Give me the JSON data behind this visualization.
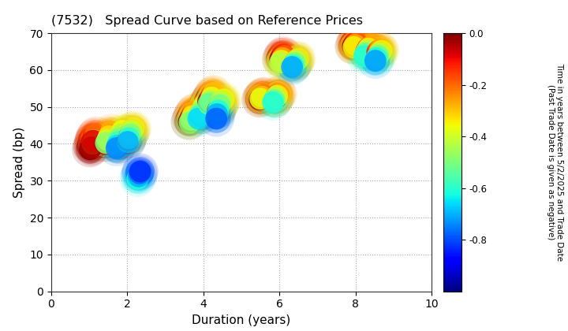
{
  "title": "(7532)   Spread Curve based on Reference Prices",
  "xlabel": "Duration (years)",
  "ylabel": "Spread (bp)",
  "xlim": [
    0,
    10
  ],
  "ylim": [
    0,
    70
  ],
  "xticks": [
    0,
    2,
    4,
    6,
    8,
    10
  ],
  "yticks": [
    0,
    10,
    20,
    30,
    40,
    50,
    60,
    70
  ],
  "colorbar_label": "Time in years between 5/2/2025 and Trade Date\n(Past Trade Date is given as negative)",
  "cbar_vmin": -1.0,
  "cbar_vmax": 0.0,
  "cbar_ticks": [
    0.0,
    -0.2,
    -0.4,
    -0.6,
    -0.8
  ],
  "clusters": [
    {
      "points": [
        [
          1.02,
          38.5,
          -0.01
        ],
        [
          1.05,
          39.5,
          -0.03
        ],
        [
          1.08,
          40.5,
          -0.06
        ],
        [
          1.11,
          41.5,
          -0.1
        ],
        [
          1.14,
          42.0,
          -0.15
        ],
        [
          1.17,
          42.5,
          -0.2
        ],
        [
          1.13,
          41.0,
          -0.26
        ],
        [
          1.09,
          40.0,
          -0.3
        ],
        [
          1.06,
          39.0,
          -0.04
        ],
        [
          1.1,
          40.8,
          -0.08
        ]
      ]
    },
    {
      "points": [
        [
          1.42,
          40.0,
          -0.03
        ],
        [
          1.46,
          41.0,
          -0.08
        ],
        [
          1.5,
          41.8,
          -0.14
        ],
        [
          1.54,
          42.5,
          -0.2
        ],
        [
          1.57,
          43.2,
          -0.27
        ],
        [
          1.52,
          42.0,
          -0.33
        ],
        [
          1.48,
          41.0,
          -0.4
        ],
        [
          1.44,
          40.2,
          -0.48
        ]
      ]
    },
    {
      "points": [
        [
          1.77,
          39.5,
          -0.02
        ],
        [
          1.8,
          40.5,
          -0.07
        ],
        [
          1.84,
          41.5,
          -0.13
        ],
        [
          1.88,
          42.2,
          -0.2
        ],
        [
          1.91,
          43.0,
          -0.28
        ],
        [
          1.87,
          43.5,
          -0.36
        ],
        [
          1.83,
          42.5,
          -0.43
        ],
        [
          1.8,
          41.5,
          -0.5
        ],
        [
          1.77,
          40.5,
          -0.58
        ],
        [
          1.74,
          39.5,
          -0.66
        ],
        [
          1.72,
          38.8,
          -0.74
        ]
      ]
    },
    {
      "points": [
        [
          2.02,
          41.0,
          -0.04
        ],
        [
          2.06,
          42.0,
          -0.1
        ],
        [
          2.1,
          43.0,
          -0.18
        ],
        [
          2.14,
          43.8,
          -0.26
        ],
        [
          2.17,
          44.2,
          -0.34
        ],
        [
          2.12,
          43.5,
          -0.42
        ],
        [
          2.08,
          42.5,
          -0.51
        ],
        [
          2.04,
          41.5,
          -0.6
        ],
        [
          2.01,
          40.5,
          -0.7
        ]
      ]
    },
    {
      "points": [
        [
          2.27,
          30.5,
          -0.62
        ],
        [
          2.3,
          31.2,
          -0.7
        ],
        [
          2.32,
          32.0,
          -0.77
        ],
        [
          2.34,
          32.5,
          -0.83
        ]
      ]
    },
    {
      "points": [
        [
          3.62,
          46.0,
          -0.02
        ],
        [
          3.66,
          47.0,
          -0.07
        ],
        [
          3.7,
          47.8,
          -0.13
        ],
        [
          3.74,
          48.5,
          -0.2
        ],
        [
          3.77,
          48.8,
          -0.27
        ],
        [
          3.72,
          47.5,
          -0.34
        ],
        [
          3.68,
          46.5,
          -0.41
        ],
        [
          3.64,
          45.8,
          -0.49
        ]
      ]
    },
    {
      "points": [
        [
          3.93,
          47.5,
          -0.02
        ],
        [
          3.97,
          48.5,
          -0.07
        ],
        [
          4.01,
          49.5,
          -0.13
        ],
        [
          4.05,
          50.2,
          -0.2
        ],
        [
          4.08,
          50.8,
          -0.27
        ],
        [
          4.02,
          50.5,
          -0.34
        ],
        [
          3.98,
          49.5,
          -0.42
        ],
        [
          3.94,
          48.5,
          -0.5
        ],
        [
          3.9,
          47.5,
          -0.58
        ],
        [
          3.87,
          46.8,
          -0.66
        ]
      ]
    },
    {
      "points": [
        [
          4.13,
          51.5,
          -0.02
        ],
        [
          4.17,
          52.2,
          -0.08
        ],
        [
          4.21,
          53.0,
          -0.15
        ],
        [
          4.25,
          53.5,
          -0.22
        ],
        [
          4.28,
          53.8,
          -0.3
        ],
        [
          4.22,
          52.5,
          -0.37
        ],
        [
          4.18,
          51.5,
          -0.45
        ],
        [
          4.14,
          50.8,
          -0.53
        ]
      ]
    },
    {
      "points": [
        [
          4.38,
          49.0,
          -0.04
        ],
        [
          4.42,
          50.0,
          -0.11
        ],
        [
          4.46,
          51.0,
          -0.19
        ],
        [
          4.5,
          51.5,
          -0.27
        ],
        [
          4.53,
          52.0,
          -0.35
        ],
        [
          4.47,
          51.5,
          -0.43
        ],
        [
          4.43,
          50.5,
          -0.51
        ],
        [
          4.39,
          49.0,
          -0.61
        ],
        [
          4.36,
          48.0,
          -0.7
        ],
        [
          4.34,
          46.8,
          -0.78
        ]
      ]
    },
    {
      "points": [
        [
          5.48,
          52.0,
          -0.02
        ],
        [
          5.52,
          52.5,
          -0.08
        ],
        [
          5.56,
          53.0,
          -0.15
        ],
        [
          5.59,
          53.2,
          -0.22
        ],
        [
          5.54,
          52.8,
          -0.29
        ],
        [
          5.5,
          52.2,
          -0.37
        ]
      ]
    },
    {
      "points": [
        [
          5.88,
          52.0,
          -0.04
        ],
        [
          5.92,
          52.8,
          -0.11
        ],
        [
          5.96,
          53.5,
          -0.19
        ],
        [
          5.99,
          53.5,
          -0.27
        ],
        [
          5.94,
          53.0,
          -0.35
        ],
        [
          5.9,
          52.5,
          -0.43
        ],
        [
          5.86,
          51.8,
          -0.52
        ],
        [
          5.83,
          51.2,
          -0.61
        ]
      ]
    },
    {
      "points": [
        [
          6.02,
          63.0,
          -0.02
        ],
        [
          6.06,
          63.8,
          -0.07
        ],
        [
          6.1,
          64.2,
          -0.13
        ],
        [
          6.13,
          63.8,
          -0.19
        ],
        [
          6.08,
          63.2,
          -0.27
        ],
        [
          6.05,
          62.5,
          -0.35
        ],
        [
          6.02,
          62.0,
          -0.43
        ]
      ]
    },
    {
      "points": [
        [
          6.38,
          61.5,
          -0.09
        ],
        [
          6.42,
          62.2,
          -0.17
        ],
        [
          6.46,
          62.8,
          -0.25
        ],
        [
          6.49,
          63.0,
          -0.34
        ],
        [
          6.44,
          62.5,
          -0.43
        ],
        [
          6.4,
          61.8,
          -0.51
        ],
        [
          6.36,
          61.2,
          -0.61
        ],
        [
          6.33,
          60.8,
          -0.71
        ]
      ]
    },
    {
      "points": [
        [
          7.93,
          66.5,
          -0.02
        ],
        [
          7.97,
          67.2,
          -0.07
        ],
        [
          8.01,
          67.5,
          -0.13
        ],
        [
          8.04,
          67.3,
          -0.19
        ],
        [
          7.99,
          66.8,
          -0.27
        ],
        [
          7.95,
          66.2,
          -0.35
        ]
      ]
    },
    {
      "points": [
        [
          8.28,
          65.0,
          -0.04
        ],
        [
          8.32,
          65.8,
          -0.11
        ],
        [
          8.36,
          66.2,
          -0.19
        ],
        [
          8.39,
          66.3,
          -0.27
        ],
        [
          8.34,
          65.8,
          -0.35
        ],
        [
          8.3,
          65.2,
          -0.43
        ],
        [
          8.26,
          64.5,
          -0.52
        ],
        [
          8.23,
          63.8,
          -0.61
        ]
      ]
    },
    {
      "points": [
        [
          8.57,
          64.8,
          -0.11
        ],
        [
          8.61,
          65.3,
          -0.19
        ],
        [
          8.65,
          65.5,
          -0.27
        ],
        [
          8.68,
          65.2,
          -0.35
        ],
        [
          8.63,
          64.5,
          -0.43
        ],
        [
          8.59,
          63.8,
          -0.52
        ],
        [
          8.55,
          63.2,
          -0.62
        ],
        [
          8.52,
          62.5,
          -0.72
        ]
      ]
    }
  ],
  "background_color": "#ffffff",
  "grid_color": "#aaaaaa",
  "cmap": "jet"
}
